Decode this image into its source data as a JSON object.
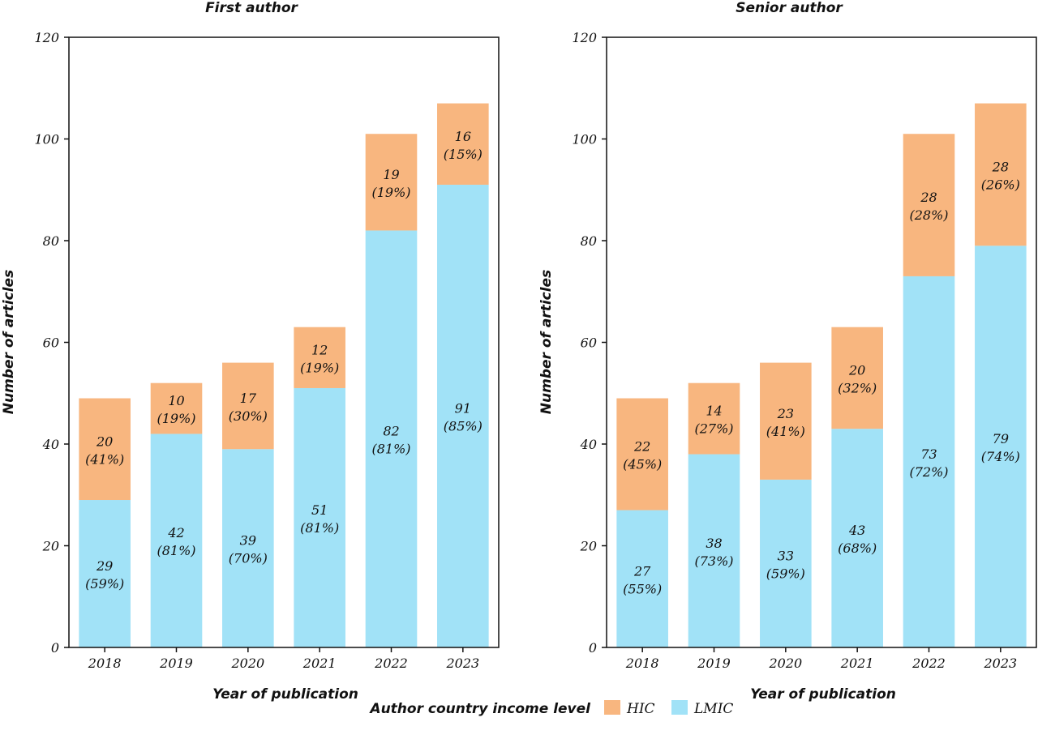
{
  "chart_data": [
    {
      "type": "bar",
      "stacked": true,
      "title": "First author",
      "xlabel": "Year of publication",
      "ylabel": "Number of articles",
      "categories": [
        "2018",
        "2019",
        "2020",
        "2021",
        "2022",
        "2023"
      ],
      "ylim": [
        0,
        120
      ],
      "yticks": [
        0,
        20,
        40,
        60,
        80,
        100,
        120
      ],
      "series": [
        {
          "name": "LMIC",
          "color": "#a1e2f7",
          "values": [
            29,
            42,
            39,
            51,
            82,
            91
          ],
          "labels": [
            "29",
            "42",
            "39",
            "51",
            "82",
            "91"
          ],
          "percent_labels": [
            "(59%)",
            "(81%)",
            "(70%)",
            "(81%)",
            "(81%)",
            "(85%)"
          ]
        },
        {
          "name": "HIC",
          "color": "#f8b67f",
          "values": [
            20,
            10,
            17,
            12,
            19,
            16
          ],
          "labels": [
            "20",
            "10",
            "17",
            "12",
            "19",
            "16"
          ],
          "percent_labels": [
            "(41%)",
            "(19%)",
            "(30%)",
            "(19%)",
            "(19%)",
            "(15%)"
          ]
        }
      ]
    },
    {
      "type": "bar",
      "stacked": true,
      "title": "Senior author",
      "xlabel": "Year of publication",
      "ylabel": "Number of articles",
      "categories": [
        "2018",
        "2019",
        "2020",
        "2021",
        "2022",
        "2023"
      ],
      "ylim": [
        0,
        120
      ],
      "yticks": [
        0,
        20,
        40,
        60,
        80,
        100,
        120
      ],
      "series": [
        {
          "name": "LMIC",
          "color": "#a1e2f7",
          "values": [
            27,
            38,
            33,
            43,
            73,
            79
          ],
          "labels": [
            "27",
            "38",
            "33",
            "43",
            "73",
            "79"
          ],
          "percent_labels": [
            "(55%)",
            "(73%)",
            "(59%)",
            "(68%)",
            "(72%)",
            "(74%)"
          ]
        },
        {
          "name": "HIC",
          "color": "#f8b67f",
          "values": [
            22,
            14,
            23,
            20,
            28,
            28
          ],
          "labels": [
            "22",
            "14",
            "23",
            "20",
            "28",
            "28"
          ],
          "percent_labels": [
            "(45%)",
            "(27%)",
            "(41%)",
            "(32%)",
            "(28%)",
            "(26%)"
          ]
        }
      ]
    }
  ],
  "legend": {
    "title": "Author country income level",
    "items": [
      {
        "label": "HIC",
        "color": "#f8b67f"
      },
      {
        "label": "LMIC",
        "color": "#a1e2f7"
      }
    ]
  }
}
